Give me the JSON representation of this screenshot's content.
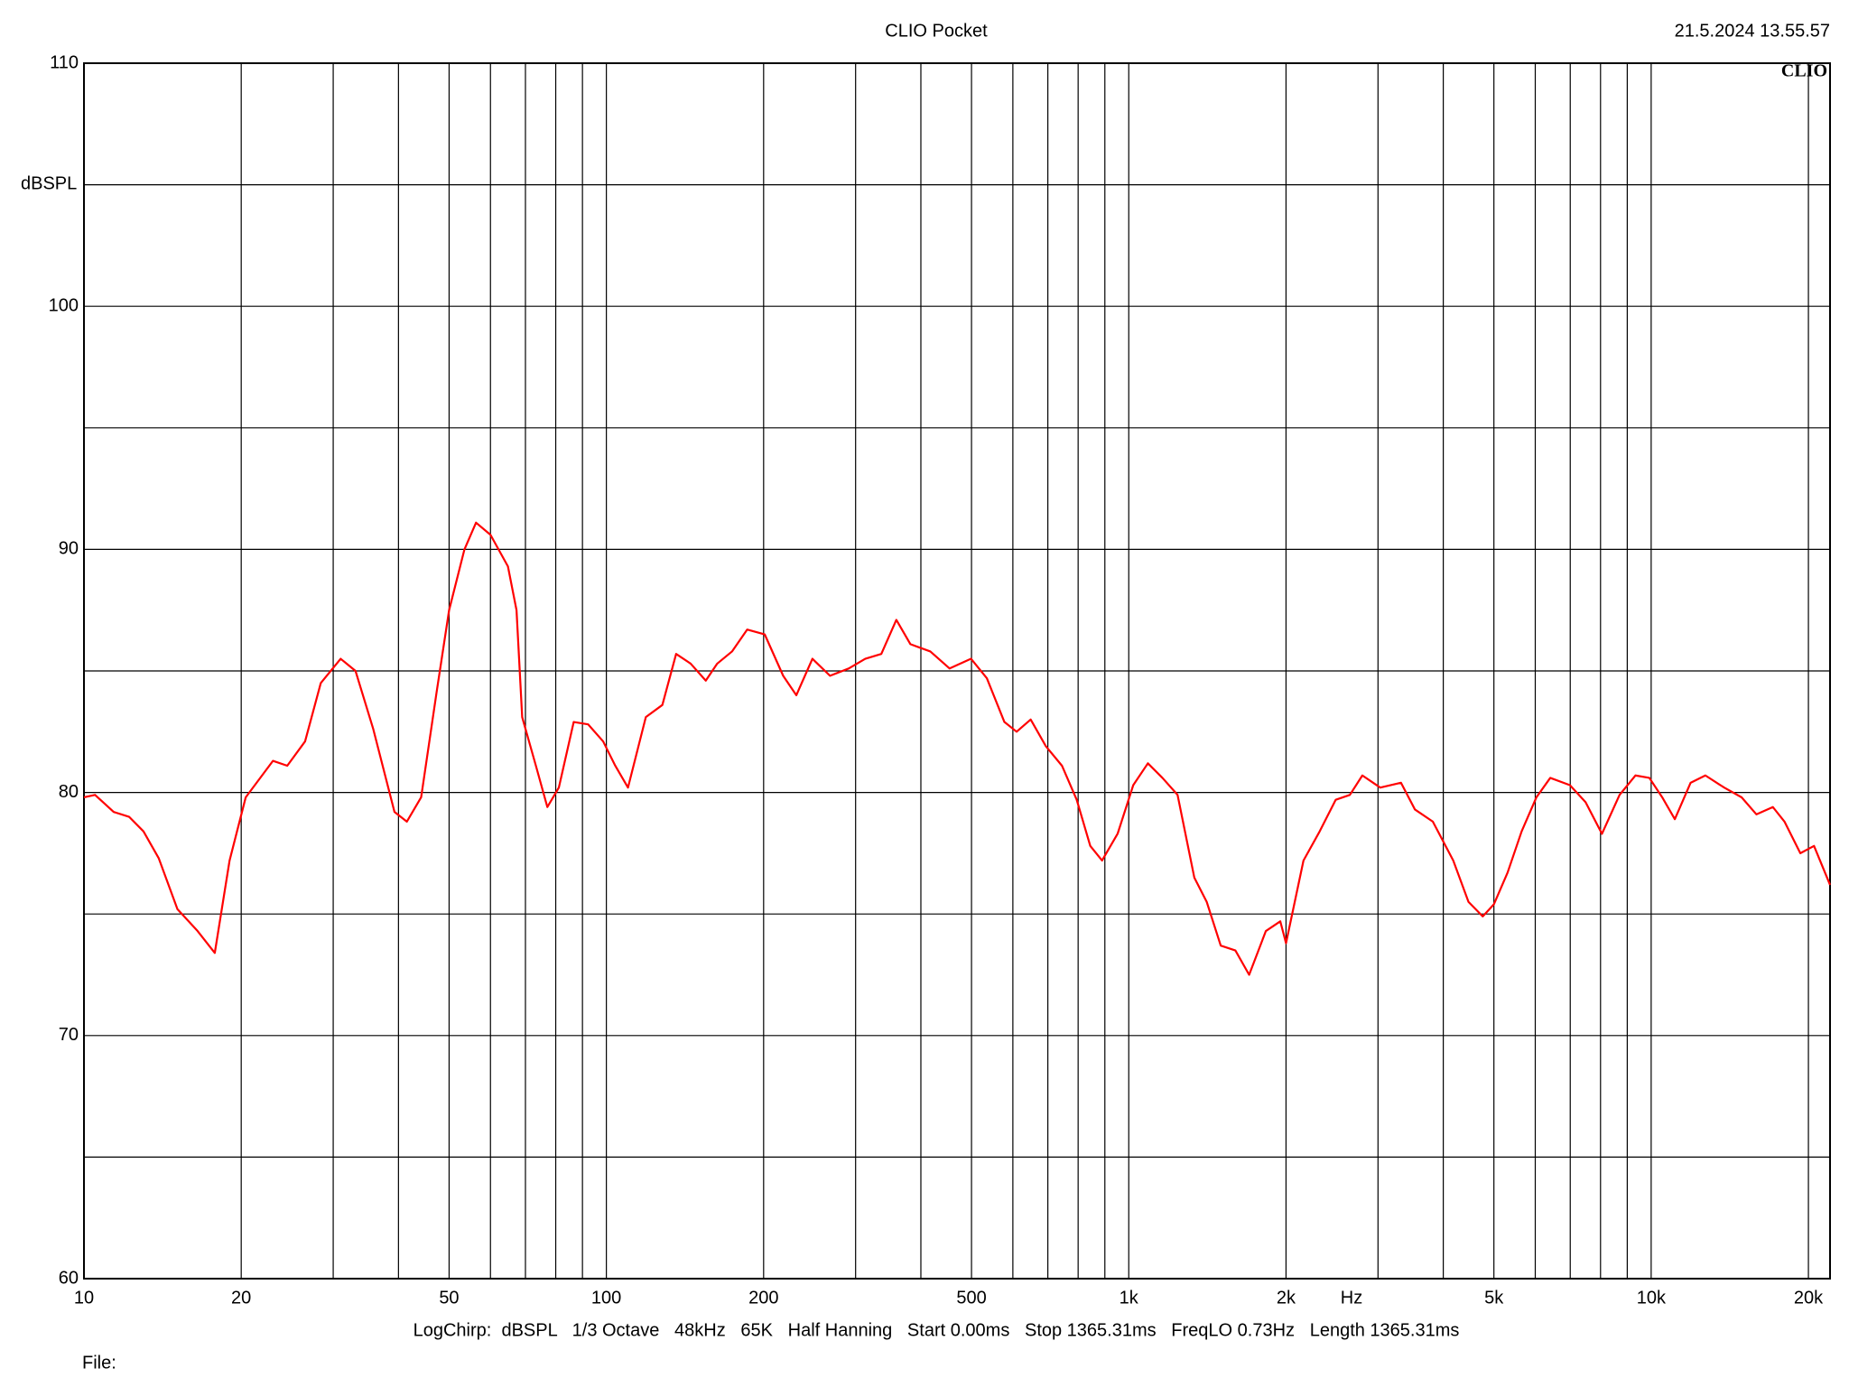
{
  "chart_data": {
    "type": "line",
    "title": "CLIO Pocket",
    "timestamp": "21.5.2024 13.55.57",
    "logo": "CLIO",
    "y_label": "dBSPL",
    "x_label": "Hz",
    "footer": "LogChirp:  dBSPL   1/3 Octave   48kHz   65K   Half Hanning   Start 0.00ms   Stop 1365.31ms   FreqLO 0.73Hz   Length 1365.31ms",
    "file_label": "File:",
    "xlog": true,
    "xlim": [
      10,
      22000
    ],
    "ylim": [
      60,
      110
    ],
    "xticks": [
      10,
      20,
      50,
      100,
      200,
      500,
      {
        "value": 1000,
        "label": "1k"
      },
      {
        "value": 2000,
        "label": "2k"
      },
      {
        "value": 5000,
        "label": "5k"
      },
      {
        "value": 10000,
        "label": "10k"
      },
      {
        "value": 20000,
        "label": "20k"
      }
    ],
    "xgrid": [
      30,
      40,
      60,
      70,
      80,
      90,
      300,
      400,
      600,
      700,
      800,
      900,
      3000,
      4000,
      6000,
      7000,
      8000,
      9000
    ],
    "yticks": [
      60,
      70,
      80,
      90,
      100,
      110
    ],
    "ygrid": [
      65,
      75,
      85,
      95,
      105
    ],
    "series": [
      {
        "color": "#ff0000",
        "x": [
          10,
          10.5,
          11.4,
          12.2,
          13.0,
          13.9,
          15.1,
          16.5,
          17.8,
          19.0,
          20.4,
          23.0,
          24.5,
          26.5,
          28.4,
          31.0,
          33.1,
          35.8,
          39.3,
          41.5,
          44.2,
          47.3,
          50,
          53.5,
          56.3,
          60,
          64.8,
          67.3,
          69,
          73.3,
          77.1,
          81.1,
          86.6,
          92.3,
          98.6,
          104,
          110,
          119,
          128,
          136,
          145,
          155,
          163,
          174,
          186,
          201,
          218,
          231,
          248,
          268,
          291,
          313,
          336,
          359,
          382,
          417,
          454,
          499,
          535,
          578,
          610,
          649,
          694,
          745,
          795,
          844,
          889,
          952,
          1020,
          1088,
          1160,
          1240,
          1335,
          1410,
          1500,
          1600,
          1700,
          1830,
          1950,
          2000,
          2160,
          2320,
          2490,
          2650,
          2800,
          3030,
          3320,
          3530,
          3820,
          4180,
          4470,
          4760,
          5000,
          5310,
          5650,
          6030,
          6410,
          6990,
          7490,
          8050,
          8700,
          9330,
          9920,
          10500,
          11100,
          11900,
          12700,
          13800,
          14900,
          15900,
          17100,
          18000,
          19300,
          20500,
          22000
        ],
        "values": [
          79.8,
          79.9,
          79.2,
          79.0,
          78.4,
          77.3,
          75.2,
          74.3,
          73.4,
          77.2,
          79.8,
          81.3,
          81.1,
          82.1,
          84.5,
          85.5,
          85.0,
          82.6,
          79.2,
          78.8,
          79.8,
          84.1,
          87.5,
          90.0,
          91.1,
          90.6,
          89.3,
          87.5,
          83.1,
          81.1,
          79.4,
          80.2,
          82.9,
          82.8,
          82.1,
          81.1,
          80.2,
          83.1,
          83.6,
          85.7,
          85.3,
          84.6,
          85.3,
          85.8,
          86.7,
          86.5,
          84.8,
          84.0,
          85.5,
          84.8,
          85.1,
          85.5,
          85.7,
          87.1,
          86.1,
          85.8,
          85.1,
          85.5,
          84.7,
          82.9,
          82.5,
          83.0,
          81.9,
          81.1,
          79.7,
          77.8,
          77.2,
          78.3,
          80.3,
          81.2,
          80.6,
          79.9,
          76.5,
          75.5,
          73.7,
          73.5,
          72.5,
          74.3,
          74.7,
          73.8,
          77.2,
          78.4,
          79.7,
          79.9,
          80.7,
          80.2,
          80.4,
          79.3,
          78.8,
          77.2,
          75.5,
          74.9,
          75.4,
          76.7,
          78.4,
          79.8,
          80.6,
          80.3,
          79.6,
          78.3,
          79.9,
          80.7,
          80.6,
          79.8,
          78.9,
          80.4,
          80.7,
          80.2,
          79.8,
          79.1,
          79.4,
          78.8,
          77.5,
          77.8,
          76.2
        ]
      }
    ]
  }
}
